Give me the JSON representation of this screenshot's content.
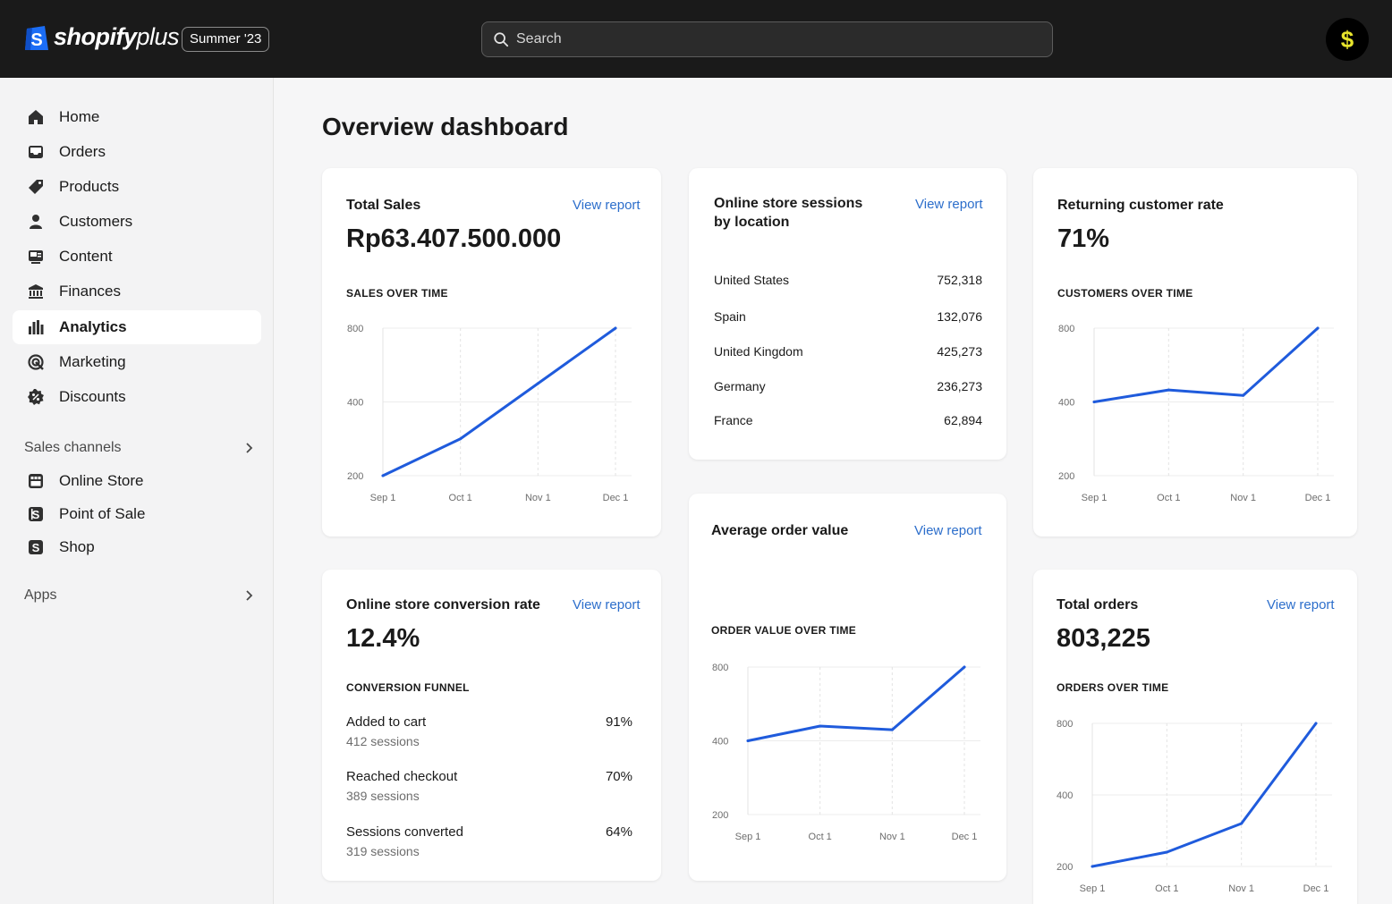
{
  "app": {
    "logo_text": "shopify",
    "logo_plus": "plus",
    "edition_badge": "Summer '23",
    "search_placeholder": "Search",
    "avatar_symbol": "$"
  },
  "sidebar": {
    "items": [
      {
        "label": "Home",
        "icon": "home-icon"
      },
      {
        "label": "Orders",
        "icon": "inbox-icon"
      },
      {
        "label": "Products",
        "icon": "tag-icon"
      },
      {
        "label": "Customers",
        "icon": "person-icon"
      },
      {
        "label": "Content",
        "icon": "content-icon"
      },
      {
        "label": "Finances",
        "icon": "bank-icon"
      },
      {
        "label": "Analytics",
        "icon": "bar-chart-icon",
        "active": true
      },
      {
        "label": "Marketing",
        "icon": "target-icon"
      },
      {
        "label": "Discounts",
        "icon": "discount-icon"
      }
    ],
    "sales_channels_label": "Sales channels",
    "channels": [
      {
        "label": "Online Store",
        "icon": "storefront-icon"
      },
      {
        "label": "Point of Sale",
        "icon": "pos-icon"
      },
      {
        "label": "Shop",
        "icon": "shop-icon"
      }
    ],
    "apps_label": "Apps"
  },
  "main": {
    "title": "Overview dashboard",
    "view_report_label": "View report",
    "total_sales": {
      "title": "Total Sales",
      "value": "Rp63.407.500.000",
      "subhead": "SALES OVER TIME"
    },
    "sessions_by_location": {
      "title_line1": "Online store sessions",
      "title_line2": "by location",
      "rows": [
        {
          "country": "United States",
          "sessions": "752,318"
        },
        {
          "country": "Spain",
          "sessions": "132,076"
        },
        {
          "country": "United Kingdom",
          "sessions": "425,273"
        },
        {
          "country": "Germany",
          "sessions": "236,273"
        },
        {
          "country": "France",
          "sessions": "62,894"
        }
      ]
    },
    "returning_customer_rate": {
      "title": "Returning customer rate",
      "value": "71%",
      "subhead": "CUSTOMERS OVER TIME"
    },
    "average_order_value": {
      "title": "Average order value",
      "subhead": "ORDER VALUE OVER TIME"
    },
    "conversion_rate": {
      "title": "Online store conversion rate",
      "value": "12.4%",
      "subhead": "CONVERSION FUNNEL",
      "funnel": [
        {
          "label": "Added to cart",
          "sessions": "412 sessions",
          "pct": "91%"
        },
        {
          "label": "Reached checkout",
          "sessions": "389 sessions",
          "pct": "70%"
        },
        {
          "label": "Sessions converted",
          "sessions": "319 sessions",
          "pct": "64%"
        }
      ]
    },
    "total_orders": {
      "title": "Total orders",
      "value": "803,225",
      "subhead": "ORDERS OVER TIME"
    }
  },
  "chart_data": [
    {
      "id": "sales",
      "type": "line",
      "x": [
        "Sep 1",
        "Oct 1",
        "Nov 1",
        "Dec 1"
      ],
      "y_ticks": [
        200,
        400,
        800
      ],
      "series": [
        {
          "values": [
            200,
            300,
            500,
            800
          ]
        }
      ],
      "line_color": "#1f5bdc"
    },
    {
      "id": "customers",
      "type": "line",
      "x": [
        "Sep 1",
        "Oct 1",
        "Nov 1",
        "Dec 1"
      ],
      "y_ticks": [
        200,
        400,
        800
      ],
      "series": [
        {
          "values": [
            400,
            465,
            435,
            800
          ]
        }
      ],
      "line_color": "#1f5bdc"
    },
    {
      "id": "order_value",
      "type": "line",
      "x": [
        "Sep 1",
        "Oct 1",
        "Nov 1",
        "Dec 1"
      ],
      "y_ticks": [
        200,
        400,
        800
      ],
      "series": [
        {
          "values": [
            400,
            480,
            460,
            800
          ]
        }
      ],
      "line_color": "#1f5bdc"
    },
    {
      "id": "orders",
      "type": "line",
      "x": [
        "Sep 1",
        "Oct 1",
        "Nov 1",
        "Dec 1"
      ],
      "y_ticks": [
        200,
        400,
        800
      ],
      "series": [
        {
          "values": [
            200,
            240,
            320,
            800
          ]
        }
      ],
      "line_color": "#1f5bdc"
    }
  ]
}
